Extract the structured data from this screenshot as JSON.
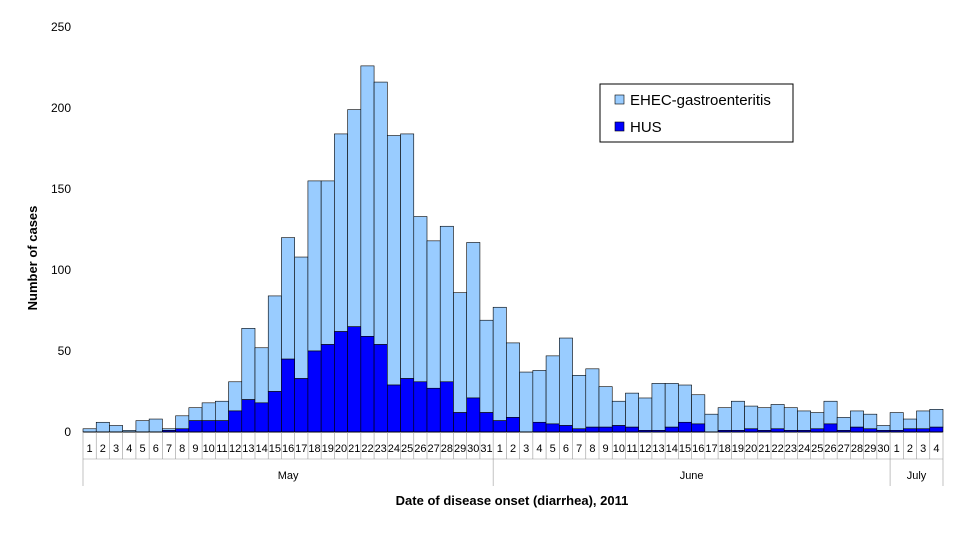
{
  "chart_data": {
    "type": "bar",
    "stacked": true,
    "title": "",
    "xlabel": "Date of disease onset (diarrhea), 2011",
    "ylabel": "Number of cases",
    "ylim": [
      0,
      250
    ],
    "yticks": [
      0,
      50,
      100,
      150,
      200,
      250
    ],
    "legend_position": "top-right",
    "colors": {
      "EHEC-gastroenteritis": "#99ccff",
      "HUS": "#0000ff"
    },
    "months": [
      {
        "name": "May",
        "days": 31
      },
      {
        "name": "June",
        "days": 30
      },
      {
        "name": "July",
        "days": 4
      }
    ],
    "categories": [
      "1",
      "2",
      "3",
      "4",
      "5",
      "6",
      "7",
      "8",
      "9",
      "10",
      "11",
      "12",
      "13",
      "14",
      "15",
      "16",
      "17",
      "18",
      "19",
      "20",
      "21",
      "22",
      "23",
      "24",
      "25",
      "26",
      "27",
      "28",
      "29",
      "30",
      "31",
      "1",
      "2",
      "3",
      "4",
      "5",
      "6",
      "7",
      "8",
      "9",
      "10",
      "11",
      "12",
      "13",
      "14",
      "15",
      "16",
      "17",
      "18",
      "19",
      "20",
      "21",
      "22",
      "23",
      "24",
      "25",
      "26",
      "27",
      "28",
      "29",
      "30",
      "1",
      "2",
      "3",
      "4"
    ],
    "series": [
      {
        "name": "HUS",
        "values": [
          0,
          0,
          0,
          0,
          0,
          0,
          1,
          2,
          7,
          7,
          7,
          13,
          20,
          18,
          25,
          45,
          33,
          50,
          54,
          62,
          65,
          59,
          54,
          29,
          33,
          31,
          27,
          31,
          12,
          21,
          12,
          7,
          9,
          0,
          6,
          5,
          4,
          2,
          3,
          3,
          4,
          3,
          1,
          1,
          3,
          6,
          5,
          0,
          1,
          1,
          2,
          1,
          2,
          1,
          1,
          2,
          5,
          1,
          3,
          2,
          1,
          1,
          2,
          2,
          3
        ],
        "color": "#0000ff"
      },
      {
        "name": "EHEC-gastroenteritis",
        "values": [
          2,
          6,
          4,
          1,
          7,
          8,
          1,
          8,
          8,
          11,
          12,
          18,
          44,
          34,
          59,
          75,
          75,
          105,
          101,
          122,
          134,
          167,
          162,
          154,
          151,
          102,
          91,
          96,
          74,
          96,
          57,
          70,
          46,
          37,
          32,
          42,
          54,
          33,
          36,
          25,
          15,
          21,
          20,
          29,
          27,
          23,
          18,
          11,
          14,
          18,
          14,
          14,
          15,
          14,
          12,
          10,
          14,
          8,
          10,
          9,
          3,
          11,
          6,
          11,
          11
        ],
        "color": "#99ccff"
      }
    ]
  }
}
